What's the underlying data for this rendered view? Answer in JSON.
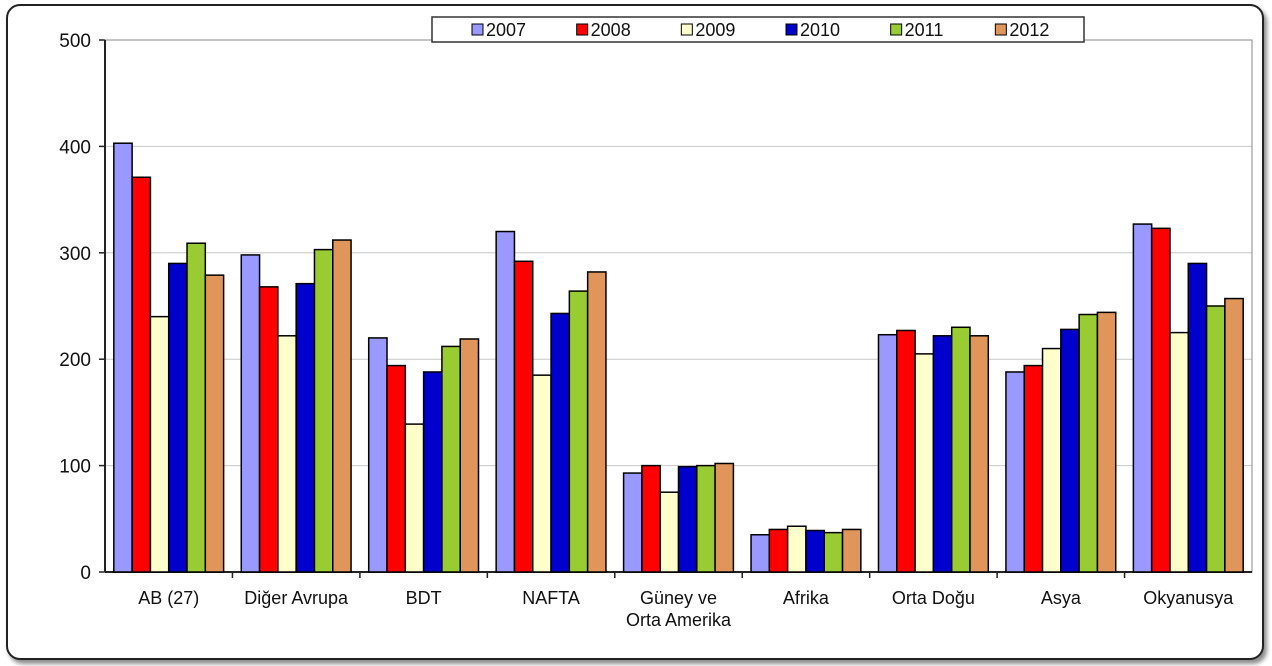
{
  "chart_data": {
    "type": "bar",
    "title": "",
    "xlabel": "",
    "ylabel": "",
    "ylim": [
      0,
      500
    ],
    "yticks": [
      0,
      100,
      200,
      300,
      400,
      500
    ],
    "grid": true,
    "legend_position": "top",
    "categories": [
      [
        "AB (27)"
      ],
      [
        "Diğer Avrupa"
      ],
      [
        "BDT"
      ],
      [
        "NAFTA"
      ],
      [
        "Güney ve",
        "Orta Amerika"
      ],
      [
        "Afrika"
      ],
      [
        "Orta Doğu"
      ],
      [
        "Asya"
      ],
      [
        "Okyanusya"
      ]
    ],
    "series": [
      {
        "name": "2007",
        "color": "#9999ff",
        "values": [
          403,
          298,
          220,
          320,
          93,
          35,
          223,
          188,
          327
        ]
      },
      {
        "name": "2008",
        "color": "#ff0000",
        "values": [
          371,
          268,
          194,
          292,
          100,
          40,
          227,
          194,
          323
        ]
      },
      {
        "name": "2009",
        "color": "#ffffcc",
        "values": [
          240,
          222,
          139,
          185,
          75,
          43,
          205,
          210,
          225
        ]
      },
      {
        "name": "2010",
        "color": "#0000cc",
        "values": [
          290,
          271,
          188,
          243,
          99,
          39,
          222,
          228,
          290
        ]
      },
      {
        "name": "2011",
        "color": "#99cc33",
        "values": [
          309,
          303,
          212,
          264,
          100,
          37,
          230,
          242,
          250
        ]
      },
      {
        "name": "2012",
        "color": "#e0955a",
        "values": [
          279,
          312,
          219,
          282,
          102,
          40,
          222,
          244,
          257
        ]
      }
    ]
  }
}
